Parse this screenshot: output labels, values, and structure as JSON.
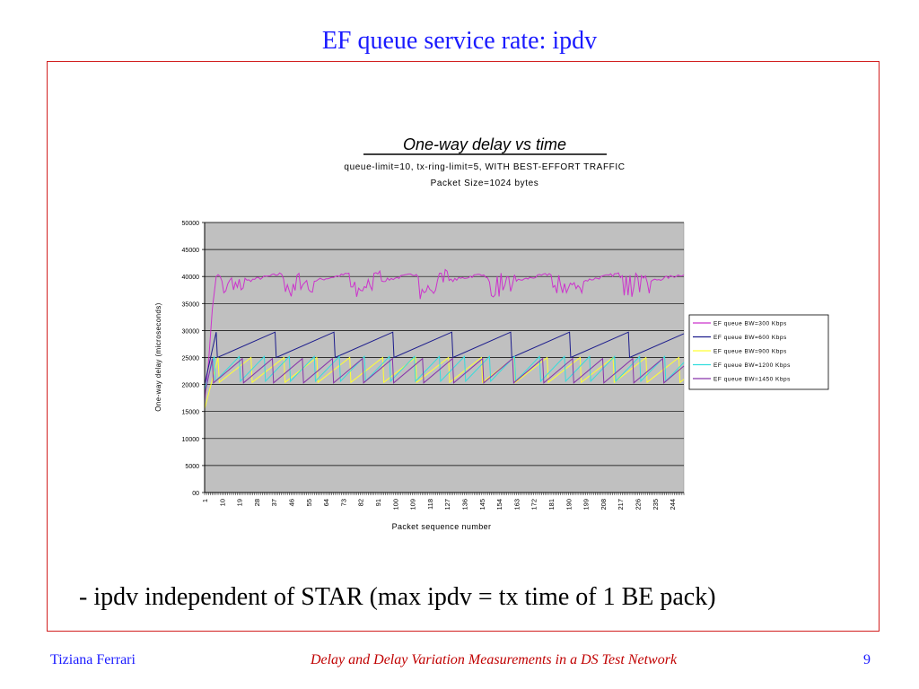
{
  "slide": {
    "title": "EF queue service rate: ipdv",
    "caption": "- ipdv independent of STAR (max ipdv = tx time of 1 BE pack)",
    "footer": {
      "author": "Tiziana Ferrari",
      "center": "Delay and Delay Variation Measurements in a DS Test Network",
      "page": "9"
    }
  },
  "chart_data": {
    "type": "line",
    "title": "One-way delay vs time",
    "subtitle_lines": [
      "queue-limit=10, tx-ring-limit=5, WITH BEST-EFFORT TRAFFIC",
      "Packet Size=1024 bytes"
    ],
    "xlabel": "Packet sequence number",
    "ylabel": "One-way delay (microseconds)",
    "ylim": [
      0,
      50000
    ],
    "yticks": [
      0,
      5000,
      10000,
      15000,
      20000,
      25000,
      30000,
      35000,
      40000,
      45000,
      50000
    ],
    "ytick_labels": [
      "00",
      "5000",
      "10000",
      "15000",
      "20000",
      "25000",
      "30000",
      "35000",
      "40000",
      "45000",
      "50000"
    ],
    "xlim": [
      1,
      250
    ],
    "xtick_labels": [
      "1",
      "10",
      "19",
      "28",
      "37",
      "46",
      "55",
      "64",
      "73",
      "82",
      "91",
      "100",
      "109",
      "118",
      "127",
      "136",
      "145",
      "154",
      "163",
      "172",
      "181",
      "190",
      "199",
      "208",
      "217",
      "226",
      "235",
      "244"
    ],
    "grid": "horizontal",
    "plot_background": "#c0c0c0",
    "legend_position": "right",
    "series": [
      {
        "name": "EF queue BW=300 Kbps",
        "color": "#cc33cc",
        "pattern": {
          "kind": "noisy",
          "start": 17000,
          "rise_to": 40000,
          "rise_end": 7,
          "period": 35,
          "base": 38000,
          "amp": 2600,
          "noise": 2500
        }
      },
      {
        "name": "EF queue BW=600 Kbps",
        "color": "#1c1c8c",
        "pattern": {
          "kind": "saw",
          "start": 20000,
          "first_peak_x": 7,
          "period": 30,
          "low": 25000,
          "high": 29700
        }
      },
      {
        "name": "EF queue BW=900 Kbps",
        "color": "#ffff33",
        "pattern": {
          "kind": "saw",
          "start": 15500,
          "first_peak_x": 8,
          "period": 16.5,
          "low": 20400,
          "high": 25000
        }
      },
      {
        "name": "EF queue BW=1200 Kbps",
        "color": "#33dddd",
        "pattern": {
          "kind": "saw",
          "start": 19000,
          "first_peak_x": 6,
          "period": 12.4,
          "low": 20600,
          "high": 25200
        }
      },
      {
        "name": "EF queue BW=1450 Kbps",
        "color": "#8833aa",
        "pattern": {
          "kind": "saw",
          "start": 18000,
          "first_peak_x": 5,
          "period": 15,
          "low": 20300,
          "high": 24800
        }
      }
    ]
  }
}
